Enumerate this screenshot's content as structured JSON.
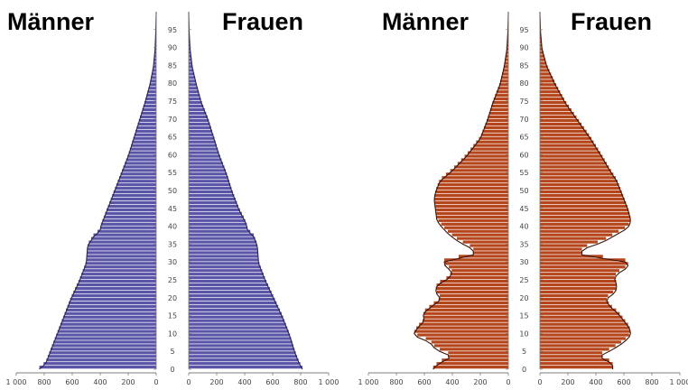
{
  "chart_data": [
    {
      "type": "bar",
      "orientation": "horizontal-pyramid",
      "left_label": "Männer",
      "right_label": "Frauen",
      "ylim": [
        0,
        100
      ],
      "y_ticks": [
        0,
        5,
        10,
        15,
        20,
        25,
        30,
        35,
        40,
        45,
        50,
        55,
        60,
        65,
        70,
        75,
        80,
        85,
        90,
        95
      ],
      "x_ticks_left": [
        "1 000",
        "800",
        "600",
        "400",
        "200",
        "0"
      ],
      "x_ticks_right": [
        "0",
        "200",
        "400",
        "600",
        "800",
        "1 000"
      ],
      "xlim": [
        0,
        1000
      ],
      "bar_color": "#5b55a8",
      "outline_color": "#2a2550",
      "series": [
        {
          "name": "Männer",
          "ages": [
            0,
            2,
            5,
            10,
            15,
            20,
            25,
            30,
            35,
            38,
            39,
            40,
            42,
            45,
            50,
            55,
            60,
            65,
            70,
            75,
            80,
            85,
            90,
            95,
            100
          ],
          "values": [
            850,
            790,
            760,
            710,
            660,
            610,
            550,
            500,
            490,
            440,
            400,
            400,
            380,
            350,
            300,
            250,
            200,
            160,
            120,
            80,
            45,
            20,
            8,
            3,
            0
          ]
        },
        {
          "name": "Frauen",
          "ages": [
            0,
            2,
            5,
            10,
            15,
            20,
            25,
            30,
            35,
            38,
            39,
            40,
            42,
            45,
            50,
            55,
            60,
            65,
            70,
            75,
            80,
            85,
            90,
            95,
            100
          ],
          "values": [
            820,
            790,
            760,
            720,
            670,
            610,
            550,
            500,
            490,
            460,
            420,
            420,
            400,
            360,
            310,
            270,
            220,
            180,
            140,
            90,
            55,
            25,
            10,
            3,
            0
          ]
        }
      ]
    },
    {
      "type": "bar",
      "orientation": "horizontal-pyramid",
      "left_label": "Männer",
      "right_label": "Frauen",
      "ylim": [
        0,
        100
      ],
      "y_ticks": [
        0,
        5,
        10,
        15,
        20,
        25,
        30,
        35,
        40,
        45,
        50,
        55,
        60,
        65,
        70,
        75,
        80,
        85,
        90,
        95
      ],
      "x_ticks_left": [
        "1 000",
        "800",
        "600",
        "400",
        "200",
        "0"
      ],
      "x_ticks_right": [
        "0",
        "200",
        "400",
        "600",
        "800",
        "1 000"
      ],
      "xlim": [
        0,
        1000
      ],
      "bar_color": "#b5461c",
      "outline_color": "#3d1408",
      "series": [
        {
          "name": "Männer",
          "ages": [
            0,
            2,
            4,
            6,
            8,
            10,
            12,
            14,
            16,
            18,
            20,
            22,
            24,
            26,
            28,
            29,
            31,
            32,
            34,
            36,
            38,
            40,
            42,
            45,
            48,
            50,
            53,
            56,
            60,
            65,
            70,
            75,
            80,
            85,
            90,
            95,
            100
          ],
          "values": [
            550,
            500,
            400,
            520,
            560,
            680,
            650,
            600,
            610,
            550,
            480,
            520,
            510,
            420,
            400,
            450,
            460,
            250,
            250,
            350,
            420,
            470,
            510,
            520,
            530,
            520,
            490,
            400,
            300,
            200,
            150,
            110,
            60,
            30,
            10,
            3,
            0
          ]
        },
        {
          "name": "Frauen",
          "ages": [
            0,
            2,
            4,
            6,
            8,
            10,
            12,
            14,
            16,
            18,
            20,
            22,
            24,
            26,
            28,
            29,
            31,
            32,
            34,
            36,
            38,
            40,
            42,
            45,
            48,
            50,
            53,
            56,
            60,
            65,
            70,
            75,
            80,
            85,
            90,
            95,
            100
          ],
          "values": [
            520,
            520,
            420,
            520,
            600,
            650,
            640,
            600,
            560,
            500,
            470,
            540,
            550,
            530,
            580,
            640,
            600,
            300,
            300,
            450,
            540,
            630,
            650,
            630,
            600,
            580,
            550,
            500,
            440,
            360,
            270,
            180,
            110,
            50,
            15,
            4,
            0
          ]
        }
      ]
    }
  ]
}
